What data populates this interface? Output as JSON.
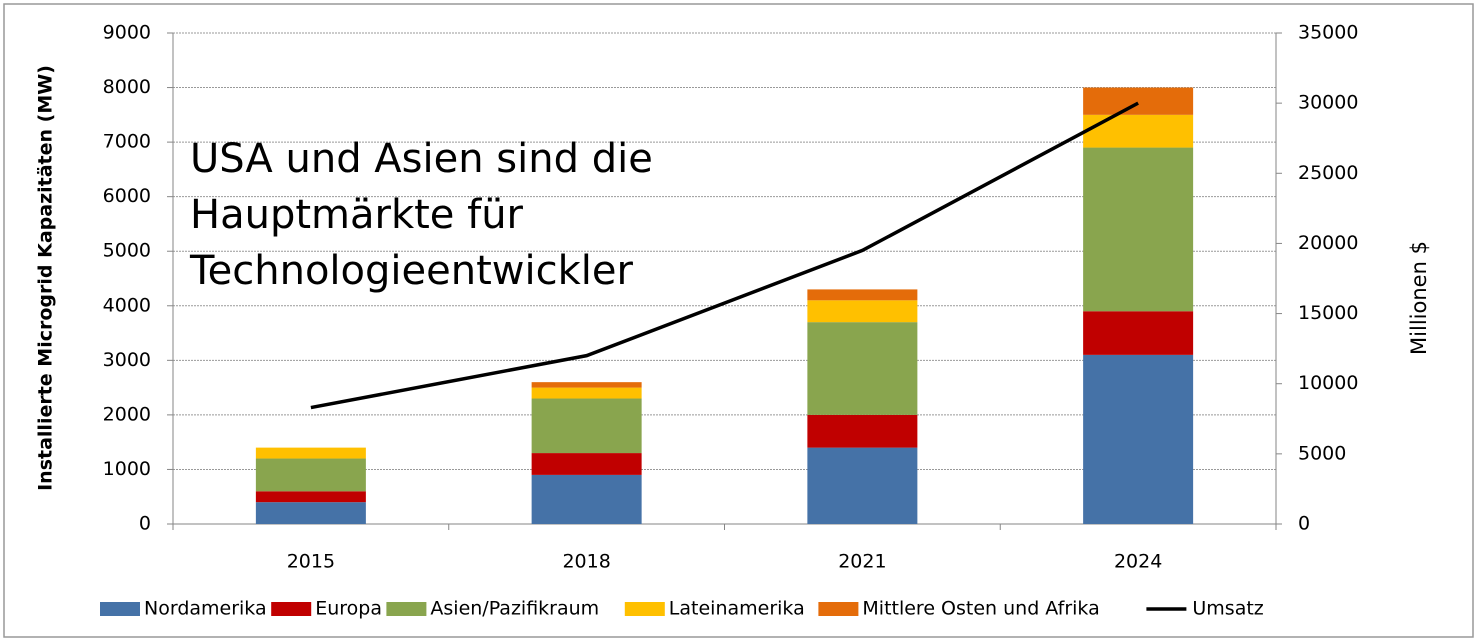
{
  "chart_data": {
    "type": "bar",
    "stacked": true,
    "categories": [
      "2015",
      "2018",
      "2021",
      "2024"
    ],
    "series": [
      {
        "name": "Nordamerika",
        "color": "#4572a7",
        "values": [
          400,
          900,
          1400,
          3100
        ]
      },
      {
        "name": "Europa",
        "color": "#c00000",
        "values": [
          200,
          400,
          600,
          800
        ]
      },
      {
        "name": "Asien/Pazifikraum",
        "color": "#89a54e",
        "values": [
          600,
          1000,
          1700,
          3000
        ]
      },
      {
        "name": "Lateinamerika",
        "color": "#ffc000",
        "values": [
          200,
          200,
          400,
          600
        ]
      },
      {
        "name": "Mittlere Osten und Afrika",
        "color": "#e46c0a",
        "values": [
          0,
          100,
          200,
          500
        ]
      },
      {
        "name": "Umsatz",
        "type": "line",
        "axis": "y2",
        "color": "#000000",
        "values": [
          8300,
          12000,
          19500,
          30000
        ]
      }
    ],
    "ylabel": "Installierte Microgrid Kapazitäten (MW)",
    "y2label": "Millionen $",
    "annotation": [
      "USA und Asien sind die",
      "Hauptmärkte für",
      "Technologieentwickler"
    ],
    "ylim": [
      0,
      9000
    ],
    "yticks": [
      0,
      1000,
      2000,
      3000,
      4000,
      5000,
      6000,
      7000,
      8000,
      9000
    ],
    "y2lim": [
      0,
      35000
    ],
    "y2ticks": [
      0,
      5000,
      10000,
      15000,
      20000,
      25000,
      30000,
      35000
    ],
    "grid": true,
    "legend": "bottom"
  }
}
